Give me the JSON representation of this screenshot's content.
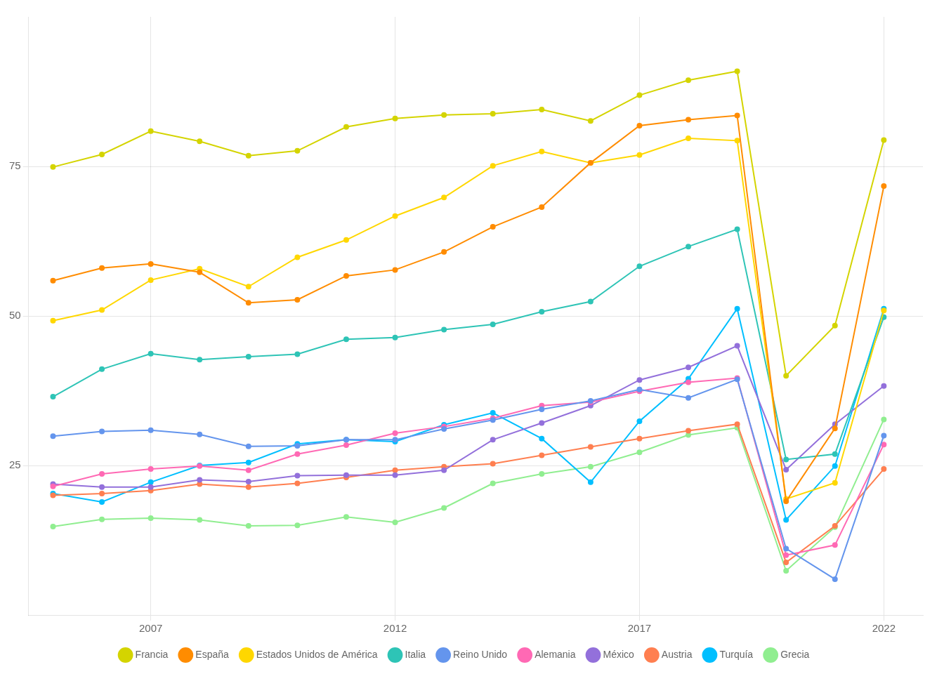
{
  "chart_data": {
    "type": "line",
    "x": [
      2005,
      2006,
      2007,
      2008,
      2009,
      2010,
      2011,
      2012,
      2013,
      2014,
      2015,
      2016,
      2017,
      2018,
      2019,
      2020,
      2021,
      2022
    ],
    "series": [
      {
        "name": "Francia",
        "color": "#d4d400",
        "values": [
          74.9,
          77.0,
          80.9,
          79.2,
          76.8,
          77.6,
          81.6,
          83.0,
          83.6,
          83.8,
          84.5,
          82.6,
          86.9,
          89.4,
          90.9,
          40.0,
          48.4,
          79.4
        ]
      },
      {
        "name": "España",
        "color": "#FF8C00",
        "values": [
          55.9,
          58.0,
          58.7,
          57.3,
          52.2,
          52.7,
          56.7,
          57.7,
          60.7,
          64.9,
          68.2,
          75.6,
          81.8,
          82.8,
          83.5,
          19.0,
          31.2,
          71.7
        ]
      },
      {
        "name": "Estados Unidos de América",
        "color": "#FFD700",
        "values": [
          49.2,
          51.0,
          56.0,
          57.9,
          54.9,
          59.8,
          62.7,
          66.7,
          69.8,
          75.1,
          77.5,
          75.6,
          76.9,
          79.7,
          79.3,
          19.4,
          22.1,
          50.9
        ]
      },
      {
        "name": "Italia",
        "color": "#2EC4B6",
        "values": [
          36.5,
          41.1,
          43.7,
          42.7,
          43.2,
          43.6,
          46.1,
          46.4,
          47.7,
          48.6,
          50.7,
          52.4,
          58.3,
          61.6,
          64.5,
          26.0,
          26.9,
          49.8
        ]
      },
      {
        "name": "Reino Unido",
        "color": "#6495ED",
        "values": [
          29.9,
          30.7,
          30.9,
          30.2,
          28.2,
          28.3,
          29.3,
          29.3,
          31.1,
          32.6,
          34.4,
          35.8,
          37.7,
          36.3,
          39.4,
          11.1,
          6.0,
          30.0
        ]
      },
      {
        "name": "Alemania",
        "color": "#FF69B4",
        "values": [
          21.5,
          23.6,
          24.4,
          24.9,
          24.2,
          26.9,
          28.4,
          30.4,
          31.5,
          32.9,
          35.0,
          35.6,
          37.4,
          38.9,
          39.6,
          10.0,
          11.7,
          28.5
        ]
      },
      {
        "name": "México",
        "color": "#9370DB",
        "values": [
          21.9,
          21.4,
          21.4,
          22.6,
          22.3,
          23.3,
          23.4,
          23.4,
          24.2,
          29.3,
          32.1,
          35.0,
          39.3,
          41.4,
          45.0,
          24.3,
          31.9,
          38.3
        ]
      },
      {
        "name": "Austria",
        "color": "#FF7F50",
        "values": [
          20.0,
          20.3,
          20.8,
          21.9,
          21.4,
          22.0,
          23.0,
          24.2,
          24.8,
          25.3,
          26.7,
          28.1,
          29.5,
          30.8,
          31.9,
          8.8,
          14.9,
          24.4
        ]
      },
      {
        "name": "Turquía",
        "color": "#00BFFF",
        "values": [
          20.3,
          18.9,
          22.2,
          25.0,
          25.5,
          28.6,
          29.3,
          29.0,
          31.8,
          33.8,
          29.5,
          22.2,
          32.4,
          39.5,
          51.2,
          15.9,
          24.9,
          51.2
        ]
      },
      {
        "name": "Grecia",
        "color": "#90EE90",
        "values": [
          14.8,
          16.0,
          16.2,
          15.9,
          14.9,
          15.0,
          16.4,
          15.5,
          17.9,
          22.0,
          23.6,
          24.8,
          27.2,
          30.1,
          31.3,
          7.4,
          14.7,
          32.7
        ]
      }
    ],
    "xlim": [
      2004.5,
      2022.8
    ],
    "xticks": [
      2007,
      2012,
      2017,
      2022
    ],
    "ylim": [
      0,
      100
    ],
    "yticks": [
      25,
      50,
      75
    ],
    "grid": true,
    "legend": "bottom",
    "marker": "circle"
  }
}
